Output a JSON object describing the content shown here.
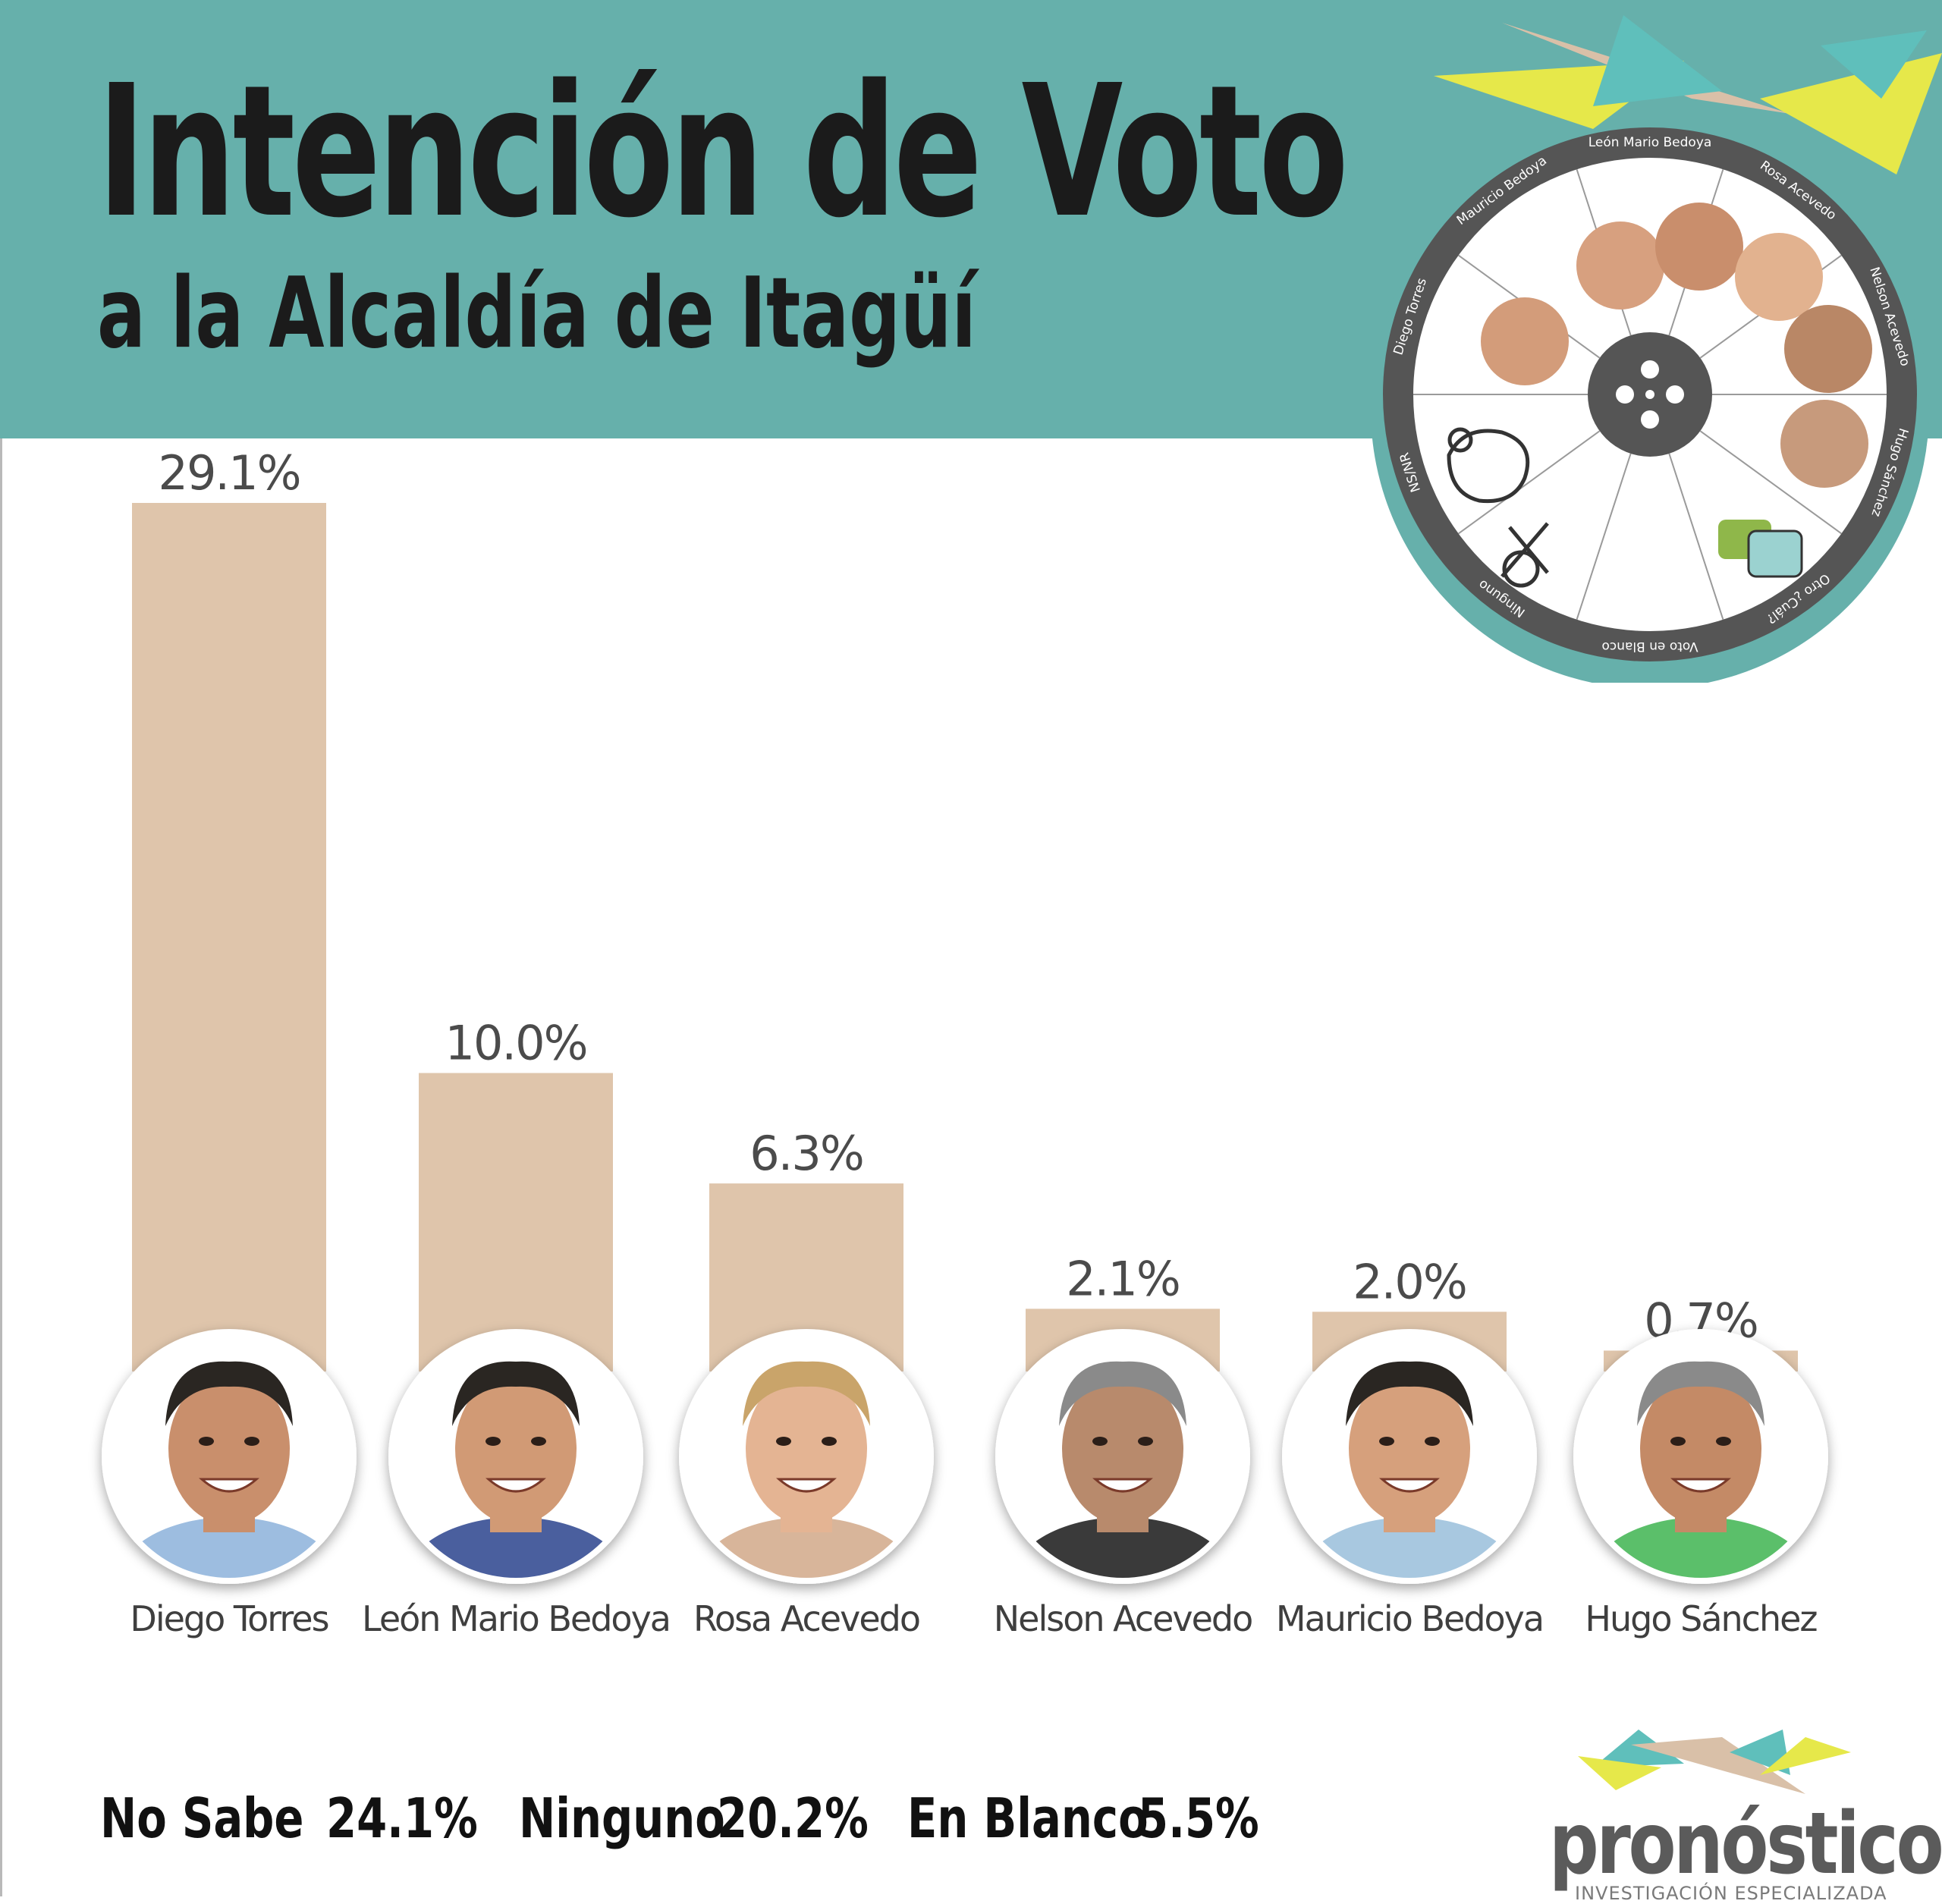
{
  "header": {
    "title": "Intención de Voto",
    "subtitle": "a la Alcaldía de Itagüí",
    "background": "#66b0ab"
  },
  "chart_data": {
    "type": "bar",
    "categories": [
      "Diego Torres",
      "León Mario Bedoya",
      "Rosa Acevedo",
      "Nelson Acevedo",
      "Mauricio Bedoya",
      "Hugo Sánchez"
    ],
    "values": [
      29.1,
      10.0,
      6.3,
      2.1,
      2.0,
      0.7
    ],
    "value_labels": [
      "29.1%",
      "10.0%",
      "6.3%",
      "2.1%",
      "2.0%",
      "0.7%"
    ],
    "title": "Intención de Voto",
    "subtitle": "a la Alcaldía de Itagüí",
    "xlabel": "",
    "ylabel": "",
    "bar_color": "#dfc5ab",
    "grid": false,
    "legend": "none"
  },
  "totals": [
    {
      "label": "No Sabe",
      "value": "24.1%"
    },
    {
      "label": "Ninguno",
      "value": "20.2%"
    },
    {
      "label": "En Blanco",
      "value": "5.5%"
    }
  ],
  "wheel": {
    "segments": [
      "León Mario Bedoya",
      "Rosa Acevedo",
      "Nelson Acevedo",
      "Hugo Sánchez",
      "Otro ¿Cuál?",
      "Voto en Blanco",
      "Ninguno",
      "NS/NR",
      "Diego Torres",
      "Mauricio Bedoya"
    ],
    "ring_color": "#555555",
    "rim_color": "#66b0ab"
  },
  "logo": {
    "name": "pronósticos",
    "tagline": "INVESTIGACIÓN ESPECIALIZADA"
  },
  "colors": {
    "accent_yellow": "#e6e84a",
    "accent_teal": "#5fbfbb",
    "accent_tan": "#d9c0a8"
  }
}
